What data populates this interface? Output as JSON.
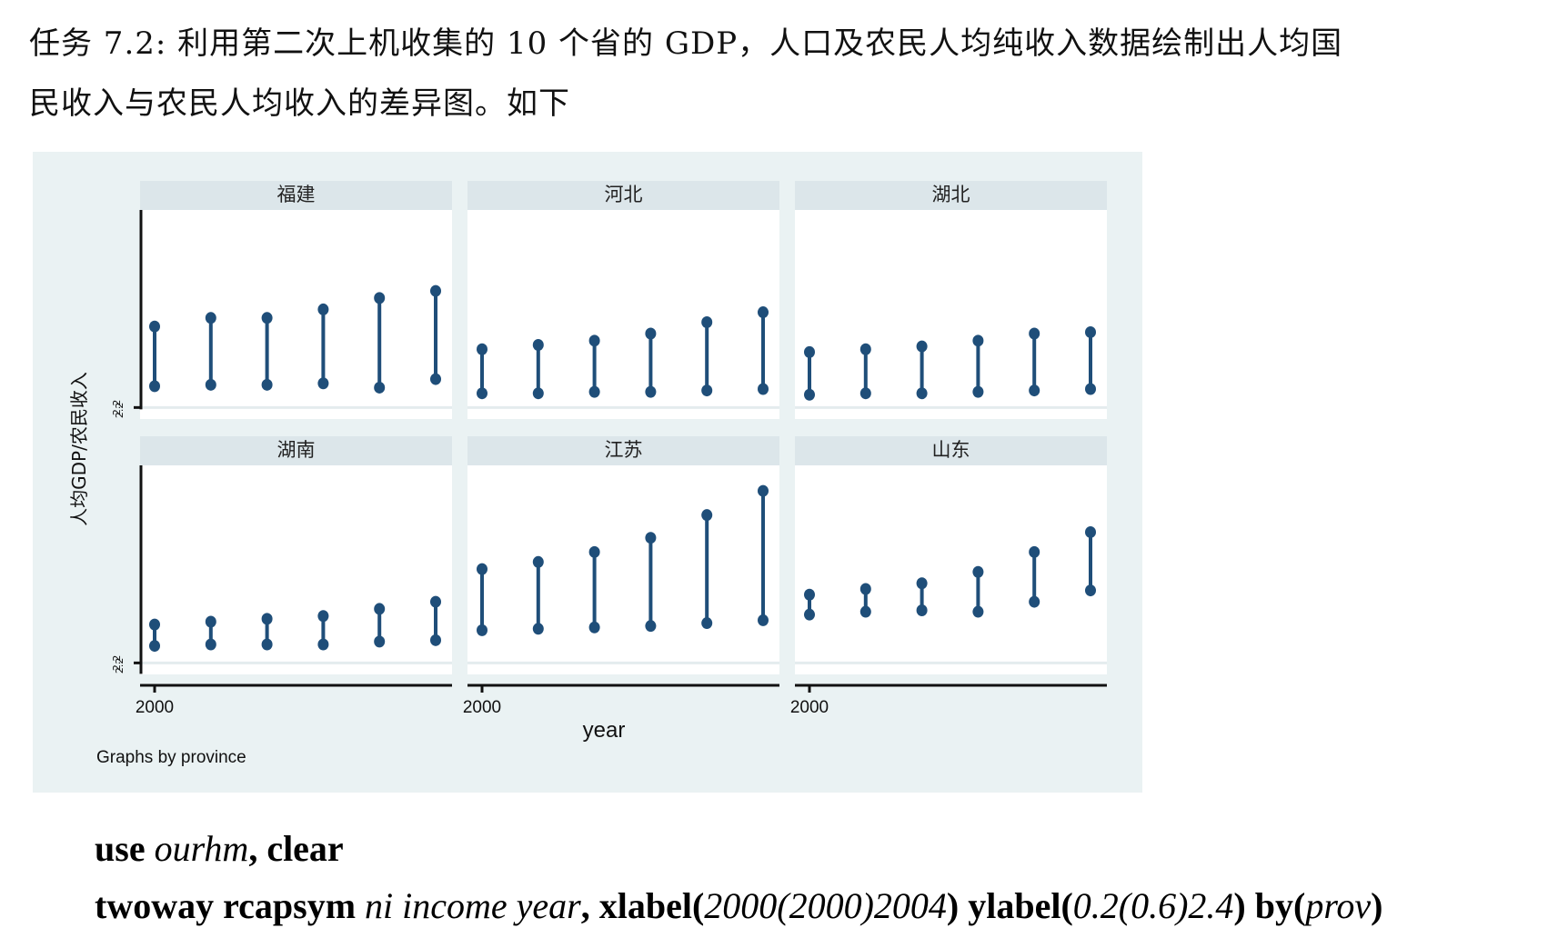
{
  "task": {
    "line1": "任务 7.2: 利用第二次上机收集的 10 个省的 GDP，人口及农民人均纯收入数据绘制出人均国",
    "line2": "民收入与农民人均收入的差异图。如下"
  },
  "chart_data": {
    "type": "range-cap-plot",
    "ylabel": "人均GDP/农民收入",
    "xlabel": "year",
    "note": "Graphs by province",
    "x_tick_labels": [
      "2000"
    ],
    "y_tick_label_text": "2.2",
    "years": [
      2000,
      2001,
      2002,
      2003,
      2004,
      2005
    ],
    "ylim": [
      0.2,
      2.4
    ],
    "panels": [
      {
        "title": "福建",
        "ni": [
          0.35,
          0.36,
          0.36,
          0.37,
          0.34,
          0.4
        ],
        "income": [
          0.77,
          0.83,
          0.83,
          0.89,
          0.97,
          1.02
        ]
      },
      {
        "title": "河北",
        "ni": [
          0.3,
          0.3,
          0.31,
          0.31,
          0.32,
          0.33
        ],
        "income": [
          0.61,
          0.64,
          0.67,
          0.72,
          0.8,
          0.87
        ]
      },
      {
        "title": "湖北",
        "ni": [
          0.29,
          0.3,
          0.3,
          0.31,
          0.32,
          0.33
        ],
        "income": [
          0.59,
          0.61,
          0.63,
          0.67,
          0.72,
          0.73
        ]
      },
      {
        "title": "湖南",
        "ni": [
          0.32,
          0.33,
          0.33,
          0.33,
          0.35,
          0.36
        ],
        "income": [
          0.47,
          0.49,
          0.51,
          0.53,
          0.58,
          0.63
        ]
      },
      {
        "title": "江苏",
        "ni": [
          0.43,
          0.44,
          0.45,
          0.46,
          0.48,
          0.5
        ],
        "income": [
          0.86,
          0.91,
          0.98,
          1.08,
          1.24,
          1.41
        ]
      },
      {
        "title": "山东",
        "ni": [
          0.54,
          0.56,
          0.57,
          0.56,
          0.63,
          0.71
        ],
        "income": [
          0.68,
          0.72,
          0.76,
          0.84,
          0.98,
          1.12
        ]
      }
    ],
    "colors": {
      "line": "#1f4e79",
      "background": "#eaf2f3",
      "strip": "#dce6ea",
      "panel": "#ffffff"
    }
  },
  "code": {
    "line1": {
      "k1": "use ",
      "i1": "ourhm",
      "k2": ", clear"
    },
    "line2": {
      "k1": "twoway rcapsym ",
      "i1": "ni income year",
      "k2": ", xlabel(",
      "i2": "2000(2000)2004",
      "k3": ") ylabel(",
      "i3": "0.2(0.6)2.4",
      "k4": ") by(",
      "i4": "prov",
      "k5": ")"
    }
  }
}
